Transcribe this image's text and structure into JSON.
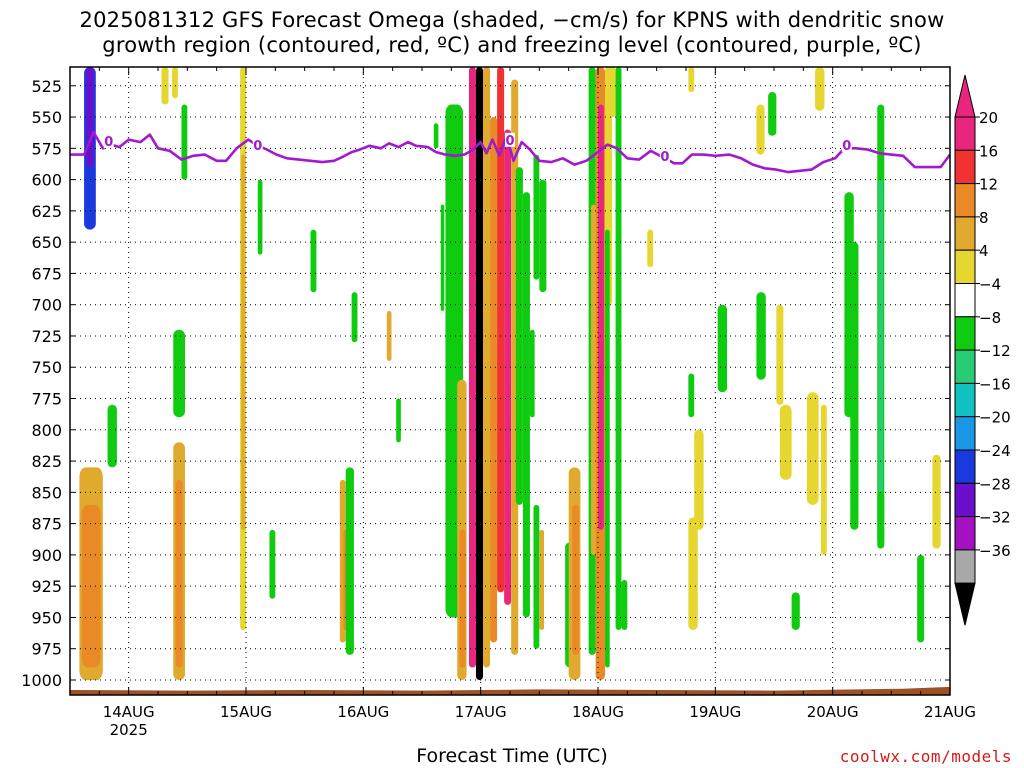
{
  "header": {
    "title_line1": "2025081312 GFS Forecast Omega (shaded, −cm/s) for KPNS with dendritic snow",
    "title_line2": "growth region (contoured, red, ºC) and freezing level (contoured, purple, ºC)"
  },
  "footer": {
    "xlabel": "Forecast Time (UTC)",
    "credit": "coolwx.com/models"
  },
  "chart_data": {
    "type": "heatmap",
    "title": "2025081312 GFS Forecast Omega (shaded, −cm/s) for KPNS with dendritic snow growth region (contoured, red, ºC) and freezing level (contoured, purple, ºC)",
    "xlabel": "Forecast Time (UTC)",
    "ylabel": "",
    "x_range_days": [
      13.5,
      21.0
    ],
    "y_range_hpa": [
      510,
      1012
    ],
    "y_scale": "linear, inverted (pressure)",
    "grid": true,
    "x_ticks": [
      {
        "day": 14,
        "label": "14AUG",
        "sublabel": "2025"
      },
      {
        "day": 15,
        "label": "15AUG",
        "sublabel": ""
      },
      {
        "day": 16,
        "label": "16AUG",
        "sublabel": ""
      },
      {
        "day": 17,
        "label": "17AUG",
        "sublabel": ""
      },
      {
        "day": 18,
        "label": "18AUG",
        "sublabel": ""
      },
      {
        "day": 19,
        "label": "19AUG",
        "sublabel": ""
      },
      {
        "day": 20,
        "label": "20AUG",
        "sublabel": ""
      },
      {
        "day": 21,
        "label": "21AUG",
        "sublabel": ""
      }
    ],
    "y_ticks": [
      525,
      550,
      575,
      600,
      625,
      650,
      675,
      700,
      725,
      750,
      775,
      800,
      825,
      850,
      875,
      900,
      925,
      950,
      975,
      1000
    ],
    "colorbar": {
      "labels": [
        "20",
        "16",
        "12",
        "8",
        "4",
        "−4",
        "−8",
        "−12",
        "−16",
        "−20",
        "−24",
        "−28",
        "−32",
        "−36"
      ],
      "bins": [
        {
          "range": [
            20,
            24
          ],
          "color": "#e8267e"
        },
        {
          "range": [
            16,
            20
          ],
          "color": "#f03232"
        },
        {
          "range": [
            12,
            16
          ],
          "color": "#ea8a26"
        },
        {
          "range": [
            8,
            12
          ],
          "color": "#e0aa2e"
        },
        {
          "range": [
            4,
            8
          ],
          "color": "#e6d630"
        },
        {
          "range": [
            -4,
            4
          ],
          "color": "#ffffff"
        },
        {
          "range": [
            -8,
            -4
          ],
          "color": "#10cc10"
        },
        {
          "range": [
            -12,
            -8
          ],
          "color": "#28cc74"
        },
        {
          "range": [
            -16,
            -12
          ],
          "color": "#12c2c2"
        },
        {
          "range": [
            -20,
            -16
          ],
          "color": "#1a98e6"
        },
        {
          "range": [
            -24,
            -20
          ],
          "color": "#1a3ae0"
        },
        {
          "range": [
            -28,
            -24
          ],
          "color": "#6a10cc"
        },
        {
          "range": [
            -32,
            -28
          ],
          "color": "#a212c0"
        },
        {
          "range": [
            -36,
            -32
          ],
          "color": "#a8a8a8"
        }
      ],
      "overflow_low_color": "#000000",
      "overflow_high_color": "#e8267e"
    },
    "freezing_level": {
      "color": "#a21ad0",
      "label": "0",
      "points": [
        [
          13.5,
          580
        ],
        [
          13.62,
          580
        ],
        [
          13.7,
          562
        ],
        [
          13.78,
          575
        ],
        [
          13.85,
          572
        ],
        [
          13.92,
          574
        ],
        [
          14.0,
          568
        ],
        [
          14.1,
          570
        ],
        [
          14.18,
          564
        ],
        [
          14.25,
          575
        ],
        [
          14.35,
          577
        ],
        [
          14.45,
          584
        ],
        [
          14.55,
          581
        ],
        [
          14.65,
          580
        ],
        [
          14.75,
          585
        ],
        [
          14.83,
          585
        ],
        [
          14.92,
          575
        ],
        [
          15.02,
          568
        ],
        [
          15.1,
          573
        ],
        [
          15.18,
          576
        ],
        [
          15.26,
          580
        ],
        [
          15.35,
          583
        ],
        [
          15.45,
          584
        ],
        [
          15.55,
          585
        ],
        [
          15.65,
          586
        ],
        [
          15.75,
          585
        ],
        [
          15.82,
          582
        ],
        [
          15.9,
          578
        ],
        [
          15.97,
          576
        ],
        [
          16.05,
          573
        ],
        [
          16.15,
          575
        ],
        [
          16.22,
          571
        ],
        [
          16.3,
          574
        ],
        [
          16.38,
          570
        ],
        [
          16.45,
          573
        ],
        [
          16.55,
          574
        ],
        [
          16.62,
          578
        ],
        [
          16.7,
          580
        ],
        [
          16.78,
          581
        ],
        [
          16.86,
          580
        ],
        [
          16.92,
          577
        ],
        [
          17.0,
          570
        ],
        [
          17.05,
          579
        ],
        [
          17.1,
          568
        ],
        [
          17.16,
          581
        ],
        [
          17.22,
          565
        ],
        [
          17.28,
          585
        ],
        [
          17.35,
          570
        ],
        [
          17.42,
          576
        ],
        [
          17.5,
          585
        ],
        [
          17.6,
          586
        ],
        [
          17.7,
          583
        ],
        [
          17.8,
          588
        ],
        [
          17.9,
          585
        ],
        [
          18.0,
          578
        ],
        [
          18.08,
          572
        ],
        [
          18.16,
          575
        ],
        [
          18.25,
          583
        ],
        [
          18.35,
          584
        ],
        [
          18.45,
          577
        ],
        [
          18.55,
          582
        ],
        [
          18.65,
          587
        ],
        [
          18.72,
          587
        ],
        [
          18.8,
          580
        ],
        [
          18.9,
          580
        ],
        [
          19.0,
          581
        ],
        [
          19.12,
          580
        ],
        [
          19.22,
          583
        ],
        [
          19.32,
          588
        ],
        [
          19.42,
          591
        ],
        [
          19.52,
          592
        ],
        [
          19.62,
          594
        ],
        [
          19.72,
          593
        ],
        [
          19.82,
          592
        ],
        [
          19.92,
          586
        ],
        [
          20.02,
          583
        ],
        [
          20.1,
          575
        ],
        [
          20.2,
          575
        ],
        [
          20.3,
          576
        ],
        [
          20.4,
          579
        ],
        [
          20.5,
          580
        ],
        [
          20.6,
          581
        ],
        [
          20.7,
          590
        ],
        [
          20.82,
          590
        ],
        [
          20.92,
          590
        ],
        [
          21.0,
          580
        ]
      ],
      "labels_at": [
        [
          13.83,
          570
        ],
        [
          15.1,
          573
        ],
        [
          17.25,
          569
        ],
        [
          18.57,
          582
        ],
        [
          20.12,
          573
        ]
      ]
    },
    "dendritic_growth_region": {
      "color": "#e02020",
      "note": "no red contours shown"
    },
    "ground": {
      "color": "#9c5126",
      "top_hpa": [
        [
          13.5,
          1008
        ],
        [
          14.5,
          1008.5
        ],
        [
          15.5,
          1008
        ],
        [
          16.5,
          1008.5
        ],
        [
          17.5,
          1007.5
        ],
        [
          18.5,
          1008
        ],
        [
          19.5,
          1008.5
        ],
        [
          20.2,
          1007.5
        ],
        [
          20.6,
          1007
        ],
        [
          21.0,
          1005.5
        ]
      ]
    },
    "omega_features": [
      {
        "x0": 13.62,
        "x1": 13.72,
        "p0": 510,
        "p1": 640,
        "v": -22
      },
      {
        "x0": 13.64,
        "x1": 13.7,
        "p0": 510,
        "p1": 590,
        "v": -26
      },
      {
        "x0": 13.58,
        "x1": 13.78,
        "p0": 830,
        "p1": 1000,
        "v": 10
      },
      {
        "x0": 13.6,
        "x1": 13.76,
        "p0": 860,
        "p1": 990,
        "v": 14
      },
      {
        "x0": 13.82,
        "x1": 13.9,
        "p0": 780,
        "p1": 830,
        "v": -5
      },
      {
        "x0": 14.28,
        "x1": 14.34,
        "p0": 510,
        "p1": 540,
        "v": 6
      },
      {
        "x0": 14.37,
        "x1": 14.42,
        "p0": 510,
        "p1": 535,
        "v": 6
      },
      {
        "x0": 14.38,
        "x1": 14.48,
        "p0": 810,
        "p1": 1000,
        "v": 10
      },
      {
        "x0": 14.4,
        "x1": 14.46,
        "p0": 840,
        "p1": 990,
        "v": 14
      },
      {
        "x0": 14.38,
        "x1": 14.48,
        "p0": 720,
        "p1": 790,
        "v": -5
      },
      {
        "x0": 14.45,
        "x1": 14.5,
        "p0": 540,
        "p1": 600,
        "v": -5
      },
      {
        "x0": 14.95,
        "x1": 15.0,
        "p0": 510,
        "p1": 960,
        "v": 6
      },
      {
        "x0": 14.96,
        "x1": 14.99,
        "p0": 580,
        "p1": 880,
        "v": 9
      },
      {
        "x0": 15.1,
        "x1": 15.14,
        "p0": 600,
        "p1": 660,
        "v": -5
      },
      {
        "x0": 15.2,
        "x1": 15.25,
        "p0": 880,
        "p1": 935,
        "v": -5
      },
      {
        "x0": 15.55,
        "x1": 15.6,
        "p0": 640,
        "p1": 690,
        "v": -5
      },
      {
        "x0": 15.8,
        "x1": 15.85,
        "p0": 840,
        "p1": 970,
        "v": 10
      },
      {
        "x0": 15.83,
        "x1": 15.86,
        "p0": 880,
        "p1": 960,
        "v": 13
      },
      {
        "x0": 15.85,
        "x1": 15.92,
        "p0": 830,
        "p1": 980,
        "v": -5
      },
      {
        "x0": 15.9,
        "x1": 15.95,
        "p0": 690,
        "p1": 730,
        "v": -5
      },
      {
        "x0": 16.2,
        "x1": 16.24,
        "p0": 705,
        "p1": 745,
        "v": 10
      },
      {
        "x0": 16.28,
        "x1": 16.32,
        "p0": 775,
        "p1": 810,
        "v": -5
      },
      {
        "x0": 16.6,
        "x1": 16.64,
        "p0": 555,
        "p1": 575,
        "v": -5
      },
      {
        "x0": 16.66,
        "x1": 16.69,
        "p0": 620,
        "p1": 705,
        "v": -5
      },
      {
        "x0": 16.7,
        "x1": 16.85,
        "p0": 540,
        "p1": 950,
        "v": -5
      },
      {
        "x0": 16.72,
        "x1": 16.8,
        "p0": 690,
        "p1": 890,
        "v": -5
      },
      {
        "x0": 16.8,
        "x1": 16.88,
        "p0": 760,
        "p1": 1000,
        "v": 10
      },
      {
        "x0": 16.82,
        "x1": 16.87,
        "p0": 880,
        "p1": 990,
        "v": 14
      },
      {
        "x0": 16.9,
        "x1": 16.96,
        "p0": 510,
        "p1": 990,
        "v": 22
      },
      {
        "x0": 16.96,
        "x1": 17.02,
        "p0": 510,
        "p1": 1000,
        "v": -40
      },
      {
        "x0": 17.02,
        "x1": 17.08,
        "p0": 510,
        "p1": 990,
        "v": 10
      },
      {
        "x0": 17.08,
        "x1": 17.14,
        "p0": 550,
        "p1": 970,
        "v": 14
      },
      {
        "x0": 17.14,
        "x1": 17.2,
        "p0": 510,
        "p1": 930,
        "v": 18
      },
      {
        "x0": 17.2,
        "x1": 17.26,
        "p0": 560,
        "p1": 940,
        "v": 22
      },
      {
        "x0": 17.26,
        "x1": 17.32,
        "p0": 520,
        "p1": 980,
        "v": 10
      },
      {
        "x0": 17.3,
        "x1": 17.36,
        "p0": 590,
        "p1": 860,
        "v": -5
      },
      {
        "x0": 17.36,
        "x1": 17.42,
        "p0": 610,
        "p1": 950,
        "v": -5
      },
      {
        "x0": 17.42,
        "x1": 17.46,
        "p0": 720,
        "p1": 790,
        "v": -5
      },
      {
        "x0": 17.45,
        "x1": 17.5,
        "p0": 580,
        "p1": 680,
        "v": -5
      },
      {
        "x0": 17.45,
        "x1": 17.5,
        "p0": 860,
        "p1": 975,
        "v": -5
      },
      {
        "x0": 17.5,
        "x1": 17.56,
        "p0": 600,
        "p1": 690,
        "v": -5
      },
      {
        "x0": 17.5,
        "x1": 17.54,
        "p0": 880,
        "p1": 960,
        "v": 10
      },
      {
        "x0": 17.72,
        "x1": 17.8,
        "p0": 890,
        "p1": 990,
        "v": -5
      },
      {
        "x0": 17.75,
        "x1": 17.85,
        "p0": 830,
        "p1": 1000,
        "v": 10
      },
      {
        "x0": 17.78,
        "x1": 17.84,
        "p0": 860,
        "p1": 980,
        "v": 14
      },
      {
        "x0": 17.92,
        "x1": 17.98,
        "p0": 510,
        "p1": 980,
        "v": -5
      },
      {
        "x0": 17.94,
        "x1": 17.98,
        "p0": 620,
        "p1": 900,
        "v": 10
      },
      {
        "x0": 17.98,
        "x1": 18.06,
        "p0": 510,
        "p1": 1000,
        "v": 14
      },
      {
        "x0": 18.0,
        "x1": 18.05,
        "p0": 540,
        "p1": 880,
        "v": 22
      },
      {
        "x0": 18.0,
        "x1": 18.05,
        "p0": 600,
        "p1": 760,
        "v": 28
      },
      {
        "x0": 18.06,
        "x1": 18.12,
        "p0": 510,
        "p1": 700,
        "v": 6
      },
      {
        "x0": 18.06,
        "x1": 18.1,
        "p0": 640,
        "p1": 990,
        "v": -5
      },
      {
        "x0": 18.1,
        "x1": 18.15,
        "p0": 510,
        "p1": 550,
        "v": 6
      },
      {
        "x0": 18.15,
        "x1": 18.2,
        "p0": 510,
        "p1": 960,
        "v": -5
      },
      {
        "x0": 18.2,
        "x1": 18.25,
        "p0": 920,
        "p1": 960,
        "v": -5
      },
      {
        "x0": 18.42,
        "x1": 18.47,
        "p0": 640,
        "p1": 670,
        "v": 6
      },
      {
        "x0": 18.77,
        "x1": 18.82,
        "p0": 510,
        "p1": 530,
        "v": 6
      },
      {
        "x0": 18.77,
        "x1": 18.82,
        "p0": 755,
        "p1": 790,
        "v": -5
      },
      {
        "x0": 18.77,
        "x1": 18.85,
        "p0": 870,
        "p1": 960,
        "v": 6
      },
      {
        "x0": 18.82,
        "x1": 18.9,
        "p0": 800,
        "p1": 880,
        "v": 6
      },
      {
        "x0": 19.02,
        "x1": 19.1,
        "p0": 700,
        "p1": 770,
        "v": -5
      },
      {
        "x0": 19.35,
        "x1": 19.42,
        "p0": 540,
        "p1": 580,
        "v": 6
      },
      {
        "x0": 19.35,
        "x1": 19.43,
        "p0": 690,
        "p1": 760,
        "v": -5
      },
      {
        "x0": 19.45,
        "x1": 19.52,
        "p0": 530,
        "p1": 565,
        "v": -5
      },
      {
        "x0": 19.52,
        "x1": 19.58,
        "p0": 700,
        "p1": 780,
        "v": 6
      },
      {
        "x0": 19.55,
        "x1": 19.65,
        "p0": 780,
        "p1": 840,
        "v": 6
      },
      {
        "x0": 19.65,
        "x1": 19.72,
        "p0": 930,
        "p1": 960,
        "v": -5
      },
      {
        "x0": 19.78,
        "x1": 19.88,
        "p0": 770,
        "p1": 860,
        "v": 6
      },
      {
        "x0": 19.85,
        "x1": 19.93,
        "p0": 510,
        "p1": 545,
        "v": 6
      },
      {
        "x0": 19.9,
        "x1": 19.95,
        "p0": 780,
        "p1": 900,
        "v": 6
      },
      {
        "x0": 20.1,
        "x1": 20.18,
        "p0": 610,
        "p1": 790,
        "v": -5
      },
      {
        "x0": 20.15,
        "x1": 20.22,
        "p0": 650,
        "p1": 880,
        "v": -5
      },
      {
        "x0": 20.38,
        "x1": 20.44,
        "p0": 540,
        "p1": 890,
        "v": -5
      },
      {
        "x0": 20.39,
        "x1": 20.43,
        "p0": 600,
        "p1": 850,
        "v": -10
      },
      {
        "x0": 20.38,
        "x1": 20.44,
        "p0": 850,
        "p1": 895,
        "v": -5
      },
      {
        "x0": 20.72,
        "x1": 20.78,
        "p0": 900,
        "p1": 970,
        "v": -5
      },
      {
        "x0": 20.85,
        "x1": 20.92,
        "p0": 820,
        "p1": 895,
        "v": 6
      }
    ]
  }
}
